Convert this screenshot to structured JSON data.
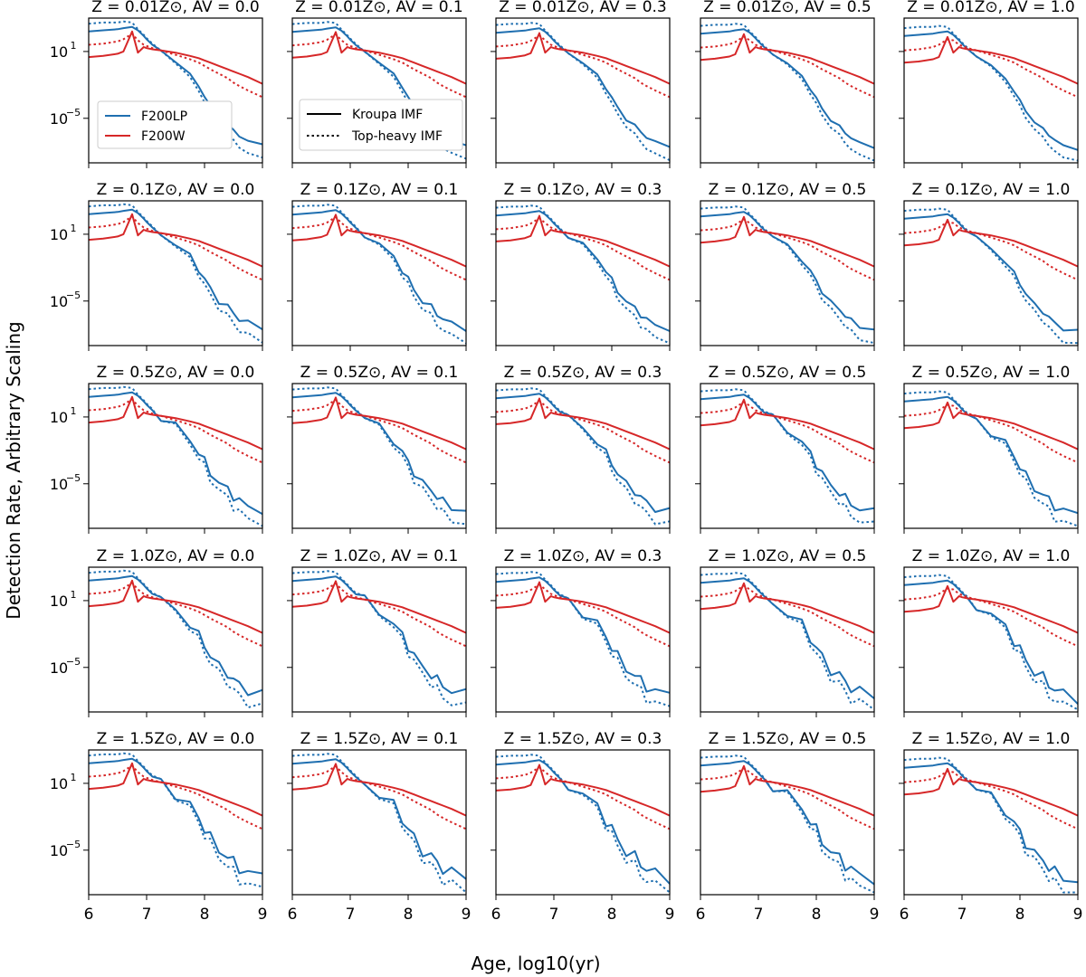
{
  "figure": {
    "xlabel": "Age, log10(yr)",
    "ylabel": "Detection Rate, Arbitrary Scaling"
  },
  "colors": {
    "F200LP": "#1f6fb0",
    "F200W": "#d62728",
    "axes": "#000000"
  },
  "legends": {
    "filters": [
      "F200LP",
      "F200W"
    ],
    "imf": [
      "Kroupa IMF",
      "Top-heavy IMF"
    ]
  },
  "axes": {
    "xlim": [
      6,
      9
    ],
    "xticks": [
      "6",
      "7",
      "8",
      "9"
    ],
    "ylim_log10": [
      -9,
      4
    ],
    "yticks": [
      {
        "exp": 1,
        "label": "10"
      },
      {
        "exp": -5,
        "label": "10"
      }
    ],
    "ytick_exponents": [
      "1",
      "−5"
    ]
  },
  "chart_data": {
    "type": "line",
    "grid": "5x5 small multiples",
    "rows": [
      {
        "Z": "0.01",
        "panel_titles": [
          "Z = 0.01Z⊙, AV = 0.0",
          "Z = 0.01Z⊙, AV = 0.1",
          "Z = 0.01Z⊙, AV = 0.3",
          "Z = 0.01Z⊙, AV = 0.5",
          "Z = 0.01Z⊙, AV = 1.0"
        ]
      },
      {
        "Z": "0.1",
        "panel_titles": [
          "Z = 0.1Z⊙, AV = 0.0",
          "Z = 0.1Z⊙, AV = 0.1",
          "Z = 0.1Z⊙, AV = 0.3",
          "Z = 0.1Z⊙, AV = 0.5",
          "Z = 0.1Z⊙, AV = 1.0"
        ]
      },
      {
        "Z": "0.5",
        "panel_titles": [
          "Z = 0.5Z⊙, AV = 0.0",
          "Z = 0.5Z⊙, AV = 0.1",
          "Z = 0.5Z⊙, AV = 0.3",
          "Z = 0.5Z⊙, AV = 0.5",
          "Z = 0.5Z⊙, AV = 1.0"
        ]
      },
      {
        "Z": "1.0",
        "panel_titles": [
          "Z = 1.0Z⊙, AV = 0.0",
          "Z = 1.0Z⊙, AV = 0.1",
          "Z = 1.0Z⊙, AV = 0.3",
          "Z = 1.0Z⊙, AV = 0.5",
          "Z = 1.0Z⊙, AV = 1.0"
        ]
      },
      {
        "Z": "1.5",
        "panel_titles": [
          "Z = 1.5Z⊙, AV = 0.0",
          "Z = 1.5Z⊙, AV = 0.1",
          "Z = 1.5Z⊙, AV = 0.3",
          "Z = 1.5Z⊙, AV = 0.5",
          "Z = 1.5Z⊙, AV = 1.0"
        ]
      }
    ],
    "AV": [
      "0.0",
      "0.1",
      "0.3",
      "0.5",
      "1.0"
    ],
    "x": [
      6.0,
      6.25,
      6.5,
      6.6,
      6.75,
      6.85,
      6.95,
      7.0,
      7.1,
      7.25,
      7.5,
      7.75,
      7.9,
      8.0,
      8.1,
      8.25,
      8.4,
      8.5,
      8.6,
      8.75,
      9.0
    ],
    "series": [
      {
        "name": "F200LP, Kroupa IMF",
        "filter": "F200LP",
        "imf": "Kroupa IMF",
        "values": [
          2.8,
          2.9,
          3.0,
          3.1,
          3.2,
          2.9,
          2.4,
          2.1,
          1.6,
          1.0,
          0.1,
          -1.0,
          -2.2,
          -3.0,
          -3.9,
          -5.0,
          -5.5,
          -6.1,
          -6.6,
          -7.0,
          -7.4
        ]
      },
      {
        "name": "F200LP, Top-heavy IMF",
        "filter": "F200LP",
        "imf": "Top-heavy IMF",
        "values": [
          3.5,
          3.6,
          3.6,
          3.7,
          3.6,
          3.0,
          2.5,
          2.2,
          1.7,
          1.0,
          0.0,
          -1.3,
          -2.6,
          -3.5,
          -4.5,
          -5.6,
          -6.3,
          -7.0,
          -7.6,
          -8.1,
          -8.6
        ]
      },
      {
        "name": "F200W, Kroupa IMF",
        "filter": "F200W",
        "imf": "Kroupa IMF",
        "values": [
          0.5,
          0.6,
          0.8,
          1.0,
          2.8,
          0.9,
          1.4,
          1.3,
          1.2,
          1.1,
          0.9,
          0.6,
          0.4,
          0.2,
          0.0,
          -0.3,
          -0.6,
          -0.8,
          -1.0,
          -1.3,
          -1.9
        ]
      },
      {
        "name": "F200W, Top-heavy IMF",
        "filter": "F200W",
        "imf": "Top-heavy IMF",
        "values": [
          1.6,
          1.7,
          1.9,
          2.1,
          2.6,
          2.0,
          1.6,
          1.5,
          1.3,
          1.1,
          0.7,
          0.3,
          0.0,
          -0.3,
          -0.6,
          -1.0,
          -1.4,
          -1.8,
          -2.1,
          -2.5,
          -3.1
        ]
      }
    ]
  }
}
